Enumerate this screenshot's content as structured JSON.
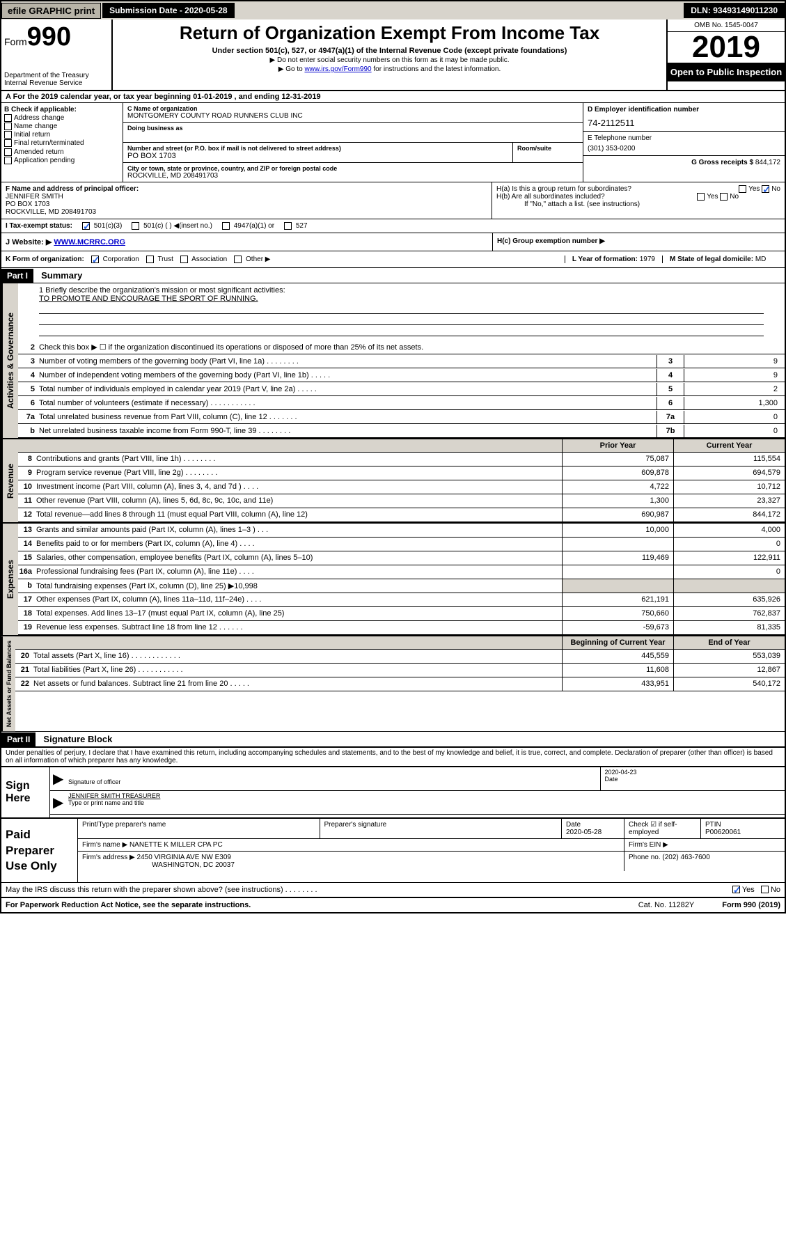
{
  "topbar": {
    "efile": "efile GRAPHIC print",
    "submission": "Submission Date - 2020-05-28",
    "dln": "DLN: 93493149011230"
  },
  "header": {
    "form_prefix": "Form",
    "form_number": "990",
    "dept": "Department of the Treasury\nInternal Revenue Service",
    "title": "Return of Organization Exempt From Income Tax",
    "subtitle": "Under section 501(c), 527, or 4947(a)(1) of the Internal Revenue Code (except private foundations)",
    "note1": "▶ Do not enter social security numbers on this form as it may be made public.",
    "note2_pre": "▶ Go to ",
    "note2_link": "www.irs.gov/Form990",
    "note2_post": " for instructions and the latest information.",
    "omb": "OMB No. 1545-0047",
    "year": "2019",
    "open": "Open to Public Inspection"
  },
  "period": "A For the 2019 calendar year, or tax year beginning 01-01-2019    , and ending 12-31-2019",
  "blockB": {
    "hdr": "B Check if applicable:",
    "items": [
      "Address change",
      "Name change",
      "Initial return",
      "Final return/terminated",
      "Amended return",
      "Application pending"
    ]
  },
  "blockC": {
    "name_label": "C Name of organization",
    "name": "MONTGOMERY COUNTY ROAD RUNNERS CLUB INC",
    "dba_label": "Doing business as",
    "addr_label": "Number and street (or P.O. box if mail is not delivered to street address)",
    "addr": "PO BOX 1703",
    "room_label": "Room/suite",
    "city_label": "City or town, state or province, country, and ZIP or foreign postal code",
    "city": "ROCKVILLE, MD  208491703"
  },
  "blockD": {
    "label": "D Employer identification number",
    "ein": "74-2112511"
  },
  "blockE": {
    "label": "E Telephone number",
    "phone": "(301) 353-0200"
  },
  "blockG": {
    "label": "G Gross receipts $",
    "amount": "844,172"
  },
  "blockF": {
    "label": "F Name and address of principal officer:",
    "name": "JENNIFER SMITH",
    "addr1": "PO BOX 1703",
    "addr2": "ROCKVILLE, MD  208491703"
  },
  "blockH": {
    "a": "H(a)  Is this a group return for subordinates?",
    "b": "H(b)  Are all subordinates included?",
    "b_note": "If \"No,\" attach a list. (see instructions)",
    "c": "H(c)  Group exemption number ▶"
  },
  "taxStatus": {
    "label": "I   Tax-exempt status:",
    "opts": [
      "501(c)(3)",
      "501(c) (   ) ◀(insert no.)",
      "4947(a)(1) or",
      "527"
    ]
  },
  "website": {
    "label": "J   Website: ▶",
    "url": "WWW.MCRRC.ORG"
  },
  "blockK": {
    "label": "K Form of organization:",
    "opts": [
      "Corporation",
      "Trust",
      "Association",
      "Other ▶"
    ],
    "L_label": "L Year of formation:",
    "L_val": "1979",
    "M_label": "M State of legal domicile:",
    "M_val": "MD"
  },
  "partI": {
    "part": "Part I",
    "title": "Summary"
  },
  "mission": {
    "q": "1   Briefly describe the organization's mission or most significant activities:",
    "a": "TO PROMOTE AND ENCOURAGE THE SPORT OF RUNNING."
  },
  "gov_lines": [
    {
      "n": "2",
      "t": "Check this box ▶ ☐  if the organization discontinued its operations or disposed of more than 25% of its net assets."
    },
    {
      "n": "3",
      "t": "Number of voting members of the governing body (Part VI, line 1a)   .   .   .   .   .   .   .   .",
      "box": "3",
      "v": "9"
    },
    {
      "n": "4",
      "t": "Number of independent voting members of the governing body (Part VI, line 1b)   .   .   .   .   .",
      "box": "4",
      "v": "9"
    },
    {
      "n": "5",
      "t": "Total number of individuals employed in calendar year 2019 (Part V, line 2a)   .   .   .   .   .",
      "box": "5",
      "v": "2"
    },
    {
      "n": "6",
      "t": "Total number of volunteers (estimate if necessary)   .   .   .   .   .   .   .   .   .   .   .",
      "box": "6",
      "v": "1,300"
    },
    {
      "n": "7a",
      "t": "Total unrelated business revenue from Part VIII, column (C), line 12   .   .   .   .   .   .   .",
      "box": "7a",
      "v": "0"
    },
    {
      "n": "b",
      "t": "Net unrelated business taxable income from Form 990-T, line 39   .   .   .   .   .   .   .   .",
      "box": "7b",
      "v": "0"
    }
  ],
  "col_hdrs": {
    "prior": "Prior Year",
    "current": "Current Year"
  },
  "revenue": [
    {
      "n": "8",
      "t": "Contributions and grants (Part VIII, line 1h)   .   .   .   .   .   .   .   .",
      "p": "75,087",
      "c": "115,554"
    },
    {
      "n": "9",
      "t": "Program service revenue (Part VIII, line 2g)   .   .   .   .   .   .   .   .",
      "p": "609,878",
      "c": "694,579"
    },
    {
      "n": "10",
      "t": "Investment income (Part VIII, column (A), lines 3, 4, and 7d )   .   .   .   .",
      "p": "4,722",
      "c": "10,712"
    },
    {
      "n": "11",
      "t": "Other revenue (Part VIII, column (A), lines 5, 6d, 8c, 9c, 10c, and 11e)",
      "p": "1,300",
      "c": "23,327"
    },
    {
      "n": "12",
      "t": "Total revenue—add lines 8 through 11 (must equal Part VIII, column (A), line 12)",
      "p": "690,987",
      "c": "844,172"
    }
  ],
  "expenses": [
    {
      "n": "13",
      "t": "Grants and similar amounts paid (Part IX, column (A), lines 1–3 )   .   .   .",
      "p": "10,000",
      "c": "4,000"
    },
    {
      "n": "14",
      "t": "Benefits paid to or for members (Part IX, column (A), line 4)   .   .   .   .",
      "p": "",
      "c": "0"
    },
    {
      "n": "15",
      "t": "Salaries, other compensation, employee benefits (Part IX, column (A), lines 5–10)",
      "p": "119,469",
      "c": "122,911"
    },
    {
      "n": "16a",
      "t": "Professional fundraising fees (Part IX, column (A), line 11e)   .   .   .   .",
      "p": "",
      "c": "0"
    },
    {
      "n": "b",
      "t": "Total fundraising expenses (Part IX, column (D), line 25) ▶10,998",
      "p": "",
      "c": ""
    },
    {
      "n": "17",
      "t": "Other expenses (Part IX, column (A), lines 11a–11d, 11f–24e)   .   .   .   .",
      "p": "621,191",
      "c": "635,926"
    },
    {
      "n": "18",
      "t": "Total expenses. Add lines 13–17 (must equal Part IX, column (A), line 25)",
      "p": "750,660",
      "c": "762,837"
    },
    {
      "n": "19",
      "t": "Revenue less expenses. Subtract line 18 from line 12   .   .   .   .   .   .",
      "p": "-59,673",
      "c": "81,335"
    }
  ],
  "na_hdrs": {
    "begin": "Beginning of Current Year",
    "end": "End of Year"
  },
  "netassets": [
    {
      "n": "20",
      "t": "Total assets (Part X, line 16)   .   .   .   .   .   .   .   .   .   .   .   .",
      "p": "445,559",
      "c": "553,039"
    },
    {
      "n": "21",
      "t": "Total liabilities (Part X, line 26)   .   .   .   .   .   .   .   .   .   .   .",
      "p": "11,608",
      "c": "12,867"
    },
    {
      "n": "22",
      "t": "Net assets or fund balances. Subtract line 21 from line 20   .   .   .   .   .",
      "p": "433,951",
      "c": "540,172"
    }
  ],
  "partII": {
    "part": "Part II",
    "title": "Signature Block"
  },
  "declaration": "Under penalties of perjury, I declare that I have examined this return, including accompanying schedules and statements, and to the best of my knowledge and belief, it is true, correct, and complete. Declaration of preparer (other than officer) is based on all information of which preparer has any knowledge.",
  "sign": {
    "label": "Sign Here",
    "sig_label": "Signature of officer",
    "date": "2020-04-23",
    "date_label": "Date",
    "name": "JENNIFER SMITH TREASURER",
    "name_label": "Type or print name and title"
  },
  "paid": {
    "label": "Paid Preparer Use Only",
    "r1": {
      "a": "Print/Type preparer's name",
      "b": "Preparer's signature",
      "c_label": "Date",
      "c": "2020-05-28",
      "d_label": "Check ☑ if self-employed",
      "e_label": "PTIN",
      "e": "P00620061"
    },
    "r2": {
      "label": "Firm's name     ▶",
      "val": "NANETTE K MILLER CPA PC",
      "ein_label": "Firm's EIN ▶"
    },
    "r3": {
      "label": "Firm's address ▶",
      "val1": "2450 VIRGINIA AVE NW E309",
      "val2": "WASHINGTON, DC  20037",
      "ph_label": "Phone no.",
      "ph": "(202) 463-7600"
    }
  },
  "irs_discuss": "May the IRS discuss this return with the preparer shown above? (see instructions)   .   .   .   .   .   .   .   .",
  "footer": {
    "pra": "For Paperwork Reduction Act Notice, see the separate instructions.",
    "cat": "Cat. No. 11282Y",
    "form": "Form 990 (2019)"
  },
  "vert": {
    "gov": "Activities & Governance",
    "rev": "Revenue",
    "exp": "Expenses",
    "na": "Net Assets or Fund Balances"
  },
  "yes": "Yes",
  "no": "No"
}
